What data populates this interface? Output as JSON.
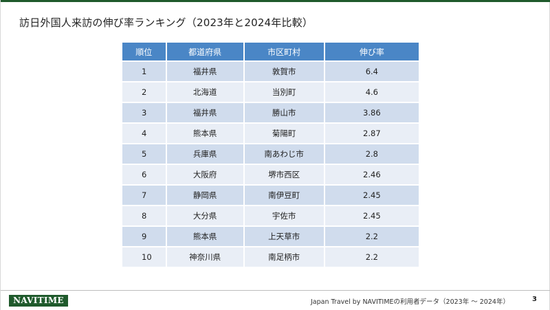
{
  "title": "訪日外国人来訪の伸び率ランキング（2023年と2024年比較）",
  "table": {
    "headers": [
      "順位",
      "都道府県",
      "市区町村",
      "伸び率"
    ],
    "rows": [
      {
        "rank": "1",
        "prefecture": "福井県",
        "municipality": "敦賀市",
        "growth": "6.4"
      },
      {
        "rank": "2",
        "prefecture": "北海道",
        "municipality": "当別町",
        "growth": "4.6"
      },
      {
        "rank": "3",
        "prefecture": "福井県",
        "municipality": "勝山市",
        "growth": "3.86"
      },
      {
        "rank": "4",
        "prefecture": "熊本県",
        "municipality": "菊陽町",
        "growth": "2.87"
      },
      {
        "rank": "5",
        "prefecture": "兵庫県",
        "municipality": "南あわじ市",
        "growth": "2.8"
      },
      {
        "rank": "6",
        "prefecture": "大阪府",
        "municipality": "堺市西区",
        "growth": "2.46"
      },
      {
        "rank": "7",
        "prefecture": "静岡県",
        "municipality": "南伊豆町",
        "growth": "2.45"
      },
      {
        "rank": "8",
        "prefecture": "大分県",
        "municipality": "宇佐市",
        "growth": "2.45"
      },
      {
        "rank": "9",
        "prefecture": "熊本県",
        "municipality": "上天草市",
        "growth": "2.2"
      },
      {
        "rank": "10",
        "prefecture": "神奈川県",
        "municipality": "南足柄市",
        "growth": "2.2"
      }
    ]
  },
  "footer": {
    "logo_text": "NAVITIME",
    "source_note": "Japan Travel by NAVITIMEの利用者データ（2023年 ～ 2024年）",
    "page_number": "3"
  },
  "colors": {
    "brand_green": "#1f5a2c",
    "header_blue": "#4a86c6",
    "row_odd": "#d0dced",
    "row_even": "#e9eef6"
  }
}
